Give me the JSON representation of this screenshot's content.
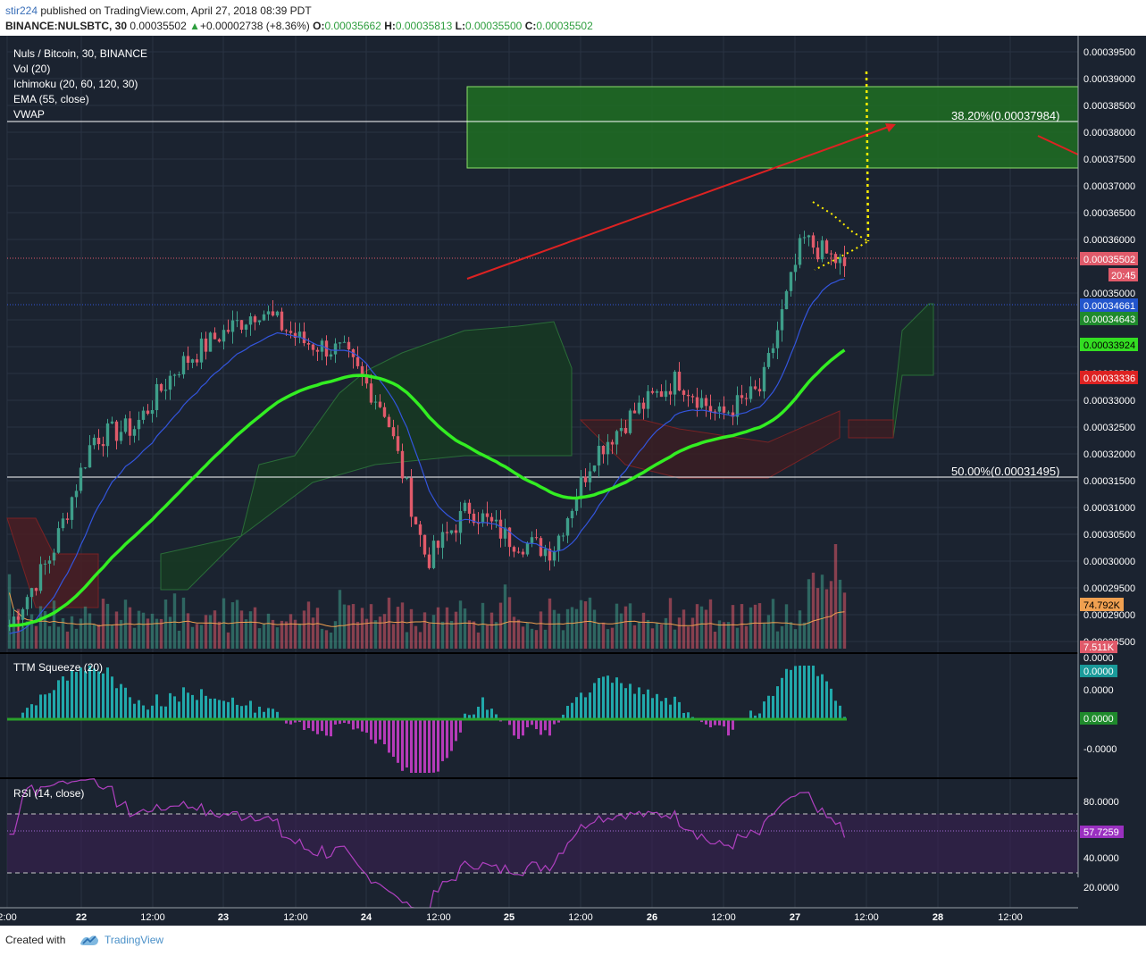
{
  "header": {
    "author": "stir224",
    "published_text": " published on TradingView.com, April 27, 2018 08:39 PDT",
    "symbol": "BINANCE:NULSBTC, 30",
    "last": "0.00035502",
    "change": "+0.00002738 (+8.36%)",
    "o_label": "O:",
    "o": "0.00035662",
    "h_label": "H:",
    "h": "0.00035813",
    "l_label": "L:",
    "l": "0.00035500",
    "c_label": "C:",
    "c": "0.00035502"
  },
  "legend": {
    "title": "Nuls / Bitcoin, 30, BINANCE",
    "vol": "Vol (20)",
    "ichimoku": "Ichimoku (20, 60, 120, 30)",
    "ema": "EMA (55, close)",
    "vwap": "VWAP"
  },
  "fib": {
    "fib382": "38.20%(0.00037984)",
    "fib50": "50.00%(0.00031495)"
  },
  "price_axis": {
    "ticks": [
      "0.00039500",
      "0.00039000",
      "0.00038500",
      "0.00038000",
      "0.00037500",
      "0.00037000",
      "0.00036500",
      "0.00036000",
      "0.00035000",
      "0.00034500",
      "0.00034000",
      "0.00033500",
      "0.00033000",
      "0.00032500",
      "0.00032000",
      "0.00031500",
      "0.00031000",
      "0.00030500",
      "0.00030000",
      "0.00029500",
      "0.00029000",
      "0.00028500"
    ],
    "badges": {
      "last": "0.00035502",
      "countdown": "20:45",
      "vwap": "0.00034661",
      "ichimoku_a": "0.00034643",
      "ema": "0.00033924",
      "ichimoku_b": "0.00033336",
      "vol_ma": "74.792K",
      "vol": "7.511K"
    }
  },
  "ttm": {
    "title": "TTM Squeeze (20)",
    "ticks": [
      "0.0000",
      "0.0000",
      "-0.0000"
    ],
    "badge_a": "0.0000",
    "badge_b": "0.0000"
  },
  "rsi": {
    "title": "RSI (14, close)",
    "ticks": [
      "80.0000",
      "60.0000",
      "40.0000",
      "20.0000"
    ],
    "badge": "57.7259"
  },
  "time_axis": {
    "ticks": [
      "2:00",
      "22",
      "12:00",
      "23",
      "12:00",
      "24",
      "12:00",
      "25",
      "12:00",
      "26",
      "12:00",
      "27",
      "12:00",
      "28",
      "12:00"
    ]
  },
  "footer": {
    "created_with": "Created with",
    "brand": "TradingView"
  },
  "colors": {
    "background": "#1b2330",
    "up": "#3e9e8a",
    "down": "#e05a6a",
    "ema": "#33ee22",
    "vwap": "#3355dd",
    "target_zone": "#1f6e22",
    "trendline": "#dd2222",
    "measure": "#ffee00"
  },
  "chart_data": [
    {
      "type": "candlestick",
      "title": "Nuls / Bitcoin, 30, BINANCE",
      "y_range": [
        0.000284,
        0.000398
      ],
      "last_close": 0.00035502,
      "points": [
        {
          "label": "22 00:00",
          "close": 0.000288
        },
        {
          "label": "22 08:00",
          "close": 0.000301
        },
        {
          "label": "22 12:00",
          "close": 0.000323
        },
        {
          "label": "22 20:00",
          "close": 0.000325
        },
        {
          "label": "23 00:00",
          "close": 0.000336
        },
        {
          "label": "23 12:00",
          "close": 0.000342
        },
        {
          "label": "23 20:00",
          "close": 0.000347
        },
        {
          "label": "24 00:00",
          "close": 0.000341
        },
        {
          "label": "24 12:00",
          "close": 0.000339
        },
        {
          "label": "24 20:00",
          "close": 0.000328
        },
        {
          "label": "25 00:00",
          "close": 0.0003
        },
        {
          "label": "25 06:00",
          "close": 0.00031
        },
        {
          "label": "25 12:00",
          "close": 0.000304
        },
        {
          "label": "25 20:00",
          "close": 0.000302
        },
        {
          "label": "26 00:00",
          "close": 0.00032
        },
        {
          "label": "26 06:00",
          "close": 0.000328
        },
        {
          "label": "26 12:00",
          "close": 0.000334
        },
        {
          "label": "26 18:00",
          "close": 0.000327
        },
        {
          "label": "27 00:00",
          "close": 0.000332
        },
        {
          "label": "27 04:00",
          "close": 0.00036
        },
        {
          "label": "27 08:30",
          "close": 0.00035502
        }
      ],
      "ema_55_last": 0.00033924,
      "vwap_last": 0.00034661,
      "fib_levels": [
        {
          "label": "38.20%",
          "value": 0.00037984
        },
        {
          "label": "50.00%",
          "value": 0.00031495
        }
      ]
    },
    {
      "type": "bar",
      "title": "TTM Squeeze (20)",
      "last_value": 0.0
    },
    {
      "type": "line",
      "title": "RSI (14, close)",
      "y_range": [
        10,
        95
      ],
      "bands": [
        30,
        70
      ],
      "last_value": 57.7259
    }
  ]
}
